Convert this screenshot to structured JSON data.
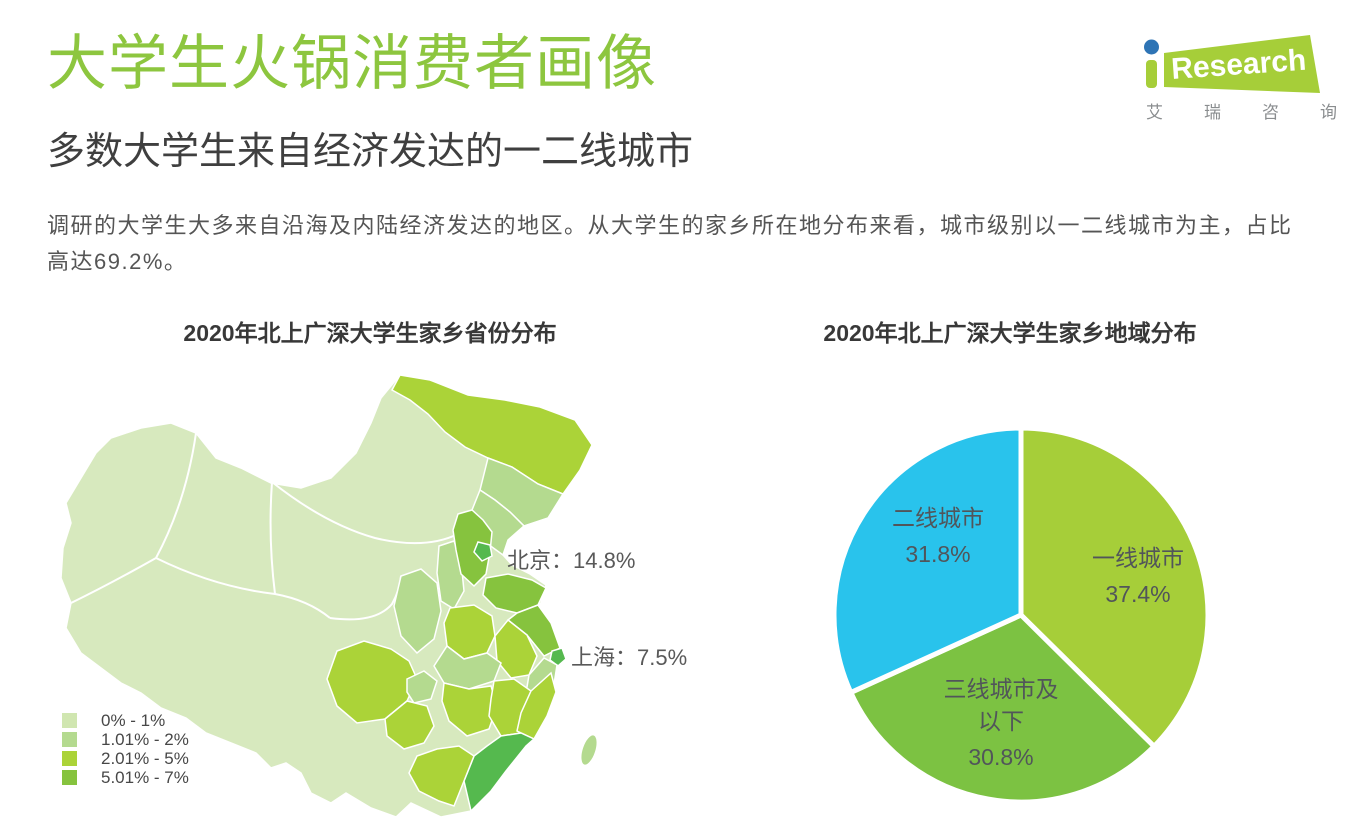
{
  "page": {
    "title": "大学生火锅消费者画像",
    "subtitle": "多数大学生来自经济发达的一二线城市",
    "paragraph_line1": "调研的大学生大多来自沿海及内陆经济发达的地区。从大学生的家乡所在地分布来看，城市级别以一二线城市为主，占比",
    "paragraph_line2": "高达69.2%。",
    "accent_green": "#8DC63F",
    "background": "#FFFFFF"
  },
  "logo": {
    "brand_i": "i",
    "brand_text": "Research",
    "brand_cn": "艾瑞咨询",
    "green": "#A6CE39",
    "dot_blue": "#2E74B5"
  },
  "chart_data": [
    {
      "type": "heatmap",
      "variant": "china_choropleth_map",
      "title": "2020年北上广深大学生家乡省份分布",
      "legend_position": "bottom-left",
      "legend": [
        {
          "range": "0% - 1%",
          "color": "#D0E6B0"
        },
        {
          "range": "1.01% - 2%",
          "color": "#B4DA8F"
        },
        {
          "range": "2.01% - 5%",
          "color": "#ABD338"
        },
        {
          "range": "5.01% - 7%",
          "color": "#86C33E"
        }
      ],
      "annotations": [
        {
          "region": "北京",
          "value": 14.8,
          "label": "北京：14.8%"
        },
        {
          "region": "上海",
          "value": 7.5,
          "label": "上海：7.5%"
        }
      ]
    },
    {
      "type": "pie",
      "title": "2020年北上广深大学生家乡地域分布",
      "start_angle_deg": 0,
      "direction": "clockwise",
      "gap_color": "#FFFFFF",
      "slices": [
        {
          "id": "tier1",
          "label_lines": [
            "一线城市"
          ],
          "value": 37.4,
          "value_label": "37.4%",
          "color": "#A6CE39"
        },
        {
          "id": "tier3",
          "label_lines": [
            "三线城市及",
            "以下"
          ],
          "value": 30.8,
          "value_label": "30.8%",
          "color": "#7CC242"
        },
        {
          "id": "tier2",
          "label_lines": [
            "二线城市"
          ],
          "value": 31.8,
          "value_label": "31.8%",
          "color": "#29C3EC"
        }
      ]
    }
  ]
}
